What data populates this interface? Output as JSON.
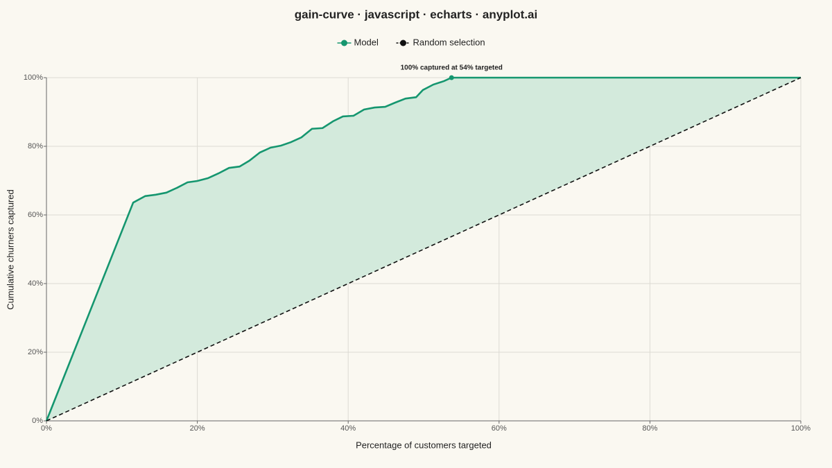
{
  "chart_data": {
    "type": "line",
    "title": "gain-curve · javascript · echarts · anyplot.ai",
    "x_label": "Percentage of customers targeted",
    "y_label": "Cumulative churners captured",
    "series": [
      {
        "name": "Model",
        "color": "#15966f",
        "x": [
          0,
          11.5,
          13.1,
          14.5,
          15.9,
          17.3,
          18.7,
          20.0,
          21.4,
          22.8,
          24.2,
          25.6,
          26.9,
          28.3,
          29.7,
          31.1,
          32.4,
          33.8,
          35.2,
          36.6,
          38.0,
          39.3,
          40.7,
          42.1,
          43.5,
          44.9,
          46.2,
          47.6,
          49.0,
          49.9,
          51.3,
          52.7,
          53.7,
          100
        ],
        "values": [
          0,
          63.6,
          65.5,
          65.9,
          66.5,
          67.9,
          69.5,
          69.9,
          70.7,
          72.1,
          73.7,
          74.1,
          75.8,
          78.2,
          79.6,
          80.2,
          81.2,
          82.6,
          85.1,
          85.3,
          87.3,
          88.7,
          88.9,
          90.7,
          91.3,
          91.5,
          92.7,
          93.9,
          94.3,
          96.4,
          98.0,
          99.0,
          100,
          100
        ]
      },
      {
        "name": "Random selection",
        "color": "#111111",
        "dashed": true,
        "x": [
          0,
          100
        ],
        "values": [
          0,
          100
        ]
      }
    ],
    "area_color": "#d3eadc",
    "annotation": {
      "text": "100% captured at 54% targeted",
      "x": 53.7,
      "y": 100
    },
    "xlim": [
      0,
      100
    ],
    "xticks": [
      {
        "value": 0,
        "label": "0%"
      },
      {
        "value": 20,
        "label": "20%"
      },
      {
        "value": 40,
        "label": "40%"
      },
      {
        "value": 60,
        "label": "60%"
      },
      {
        "value": 80,
        "label": "80%"
      },
      {
        "value": 100,
        "label": "100%"
      }
    ],
    "ylim": [
      0,
      100
    ],
    "yticks": [
      {
        "value": 0,
        "label": "0%"
      },
      {
        "value": 20,
        "label": "20%"
      },
      {
        "value": 40,
        "label": "40%"
      },
      {
        "value": 60,
        "label": "60%"
      },
      {
        "value": 80,
        "label": "80%"
      },
      {
        "value": 100,
        "label": "100%"
      }
    ],
    "grid": true,
    "legend": "top"
  }
}
